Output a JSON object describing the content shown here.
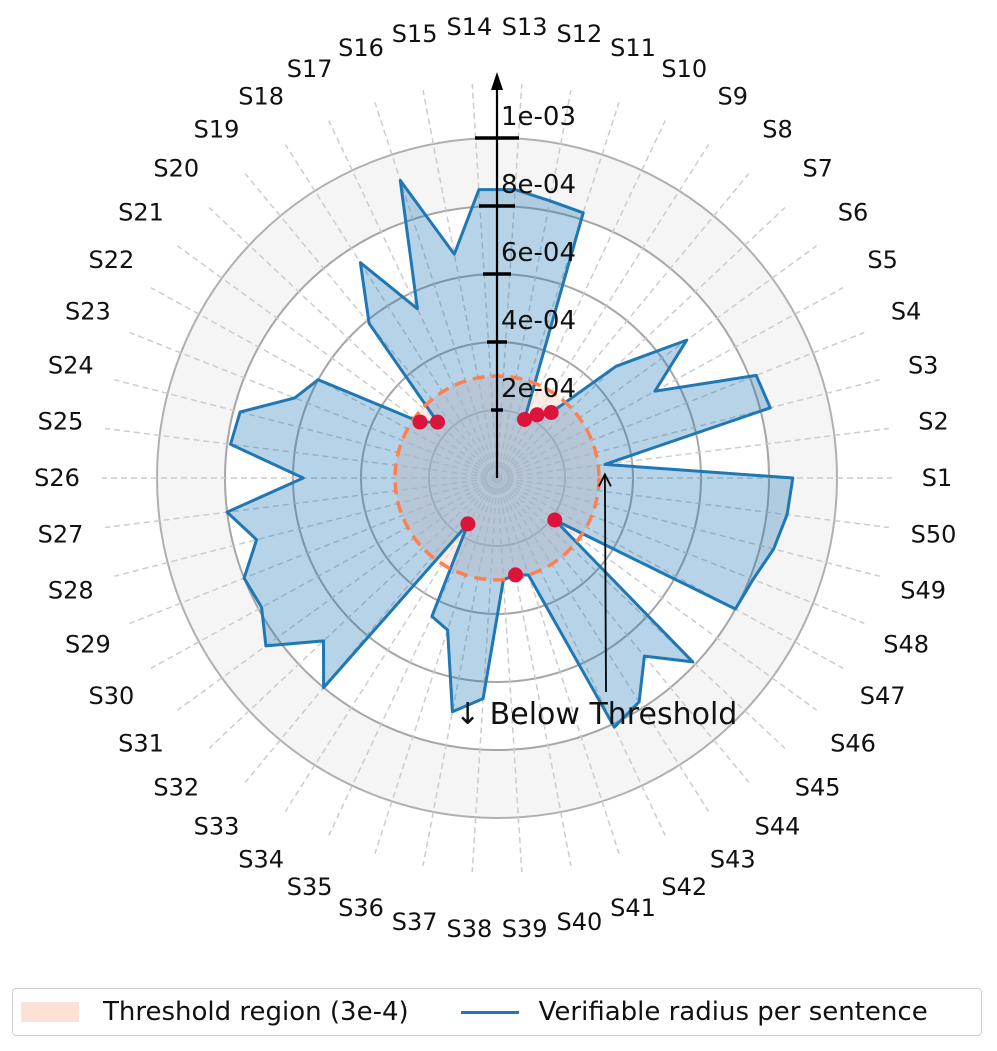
{
  "chart_data": {
    "type": "radar",
    "categories": [
      "S1",
      "S2",
      "S3",
      "S4",
      "S5",
      "S6",
      "S7",
      "S8",
      "S9",
      "S10",
      "S11",
      "S12",
      "S13",
      "S14",
      "S15",
      "S16",
      "S17",
      "S18",
      "S19",
      "S20",
      "S21",
      "S22",
      "S23",
      "S24",
      "S25",
      "S26",
      "S27",
      "S28",
      "S29",
      "S30",
      "S31",
      "S32",
      "S33",
      "S34",
      "S35",
      "S36",
      "S37",
      "S38",
      "S39",
      "S40",
      "S41",
      "S42",
      "S43",
      "S44",
      "S45",
      "S46",
      "S47",
      "S48",
      "S49",
      "S50"
    ],
    "series": [
      {
        "name": "Verifiable radius per sentence",
        "values": [
          0.00087,
          0.00032,
          0.00083,
          0.00082,
          0.00053,
          0.00069,
          0.00048,
          0.00025,
          0.00022,
          0.00019,
          0.00082,
          0.00083,
          0.00085,
          0.00085,
          0.00067,
          0.00092,
          0.00055,
          0.00075,
          0.00059,
          0.00024,
          0.00028,
          0.0006,
          0.00064,
          0.00078,
          0.00079,
          0.00057,
          0.0008,
          0.00073,
          0.0008,
          0.00079,
          0.00084,
          0.0007,
          0.0008,
          0.00016,
          0.00045,
          0.00047,
          0.0007,
          0.00065,
          0.0003,
          0.00029,
          0.0003,
          0.00081,
          0.00078,
          0.00068,
          0.00079,
          0.00021,
          0.0008,
          0.00081,
          0.00084,
          0.00086
        ],
        "color": "#1f77b4"
      }
    ],
    "threshold": {
      "label": "Threshold region (3e-4)",
      "value": 0.0003,
      "color": "#ff7f50",
      "fill": "#fde0d6"
    },
    "below_threshold_marker_color": "#dc143c",
    "radial_axis": {
      "tick_labels": [
        "2e-04",
        "4e-04",
        "6e-04",
        "8e-04",
        "1e-03"
      ],
      "tick_values": [
        0.0002,
        0.0004,
        0.0006,
        0.0008,
        0.001
      ],
      "rmax": 0.001,
      "band_color": "#f5f5f5"
    },
    "annotation": {
      "text": "↓ Below Threshold",
      "target_category": "S2"
    },
    "legend": {
      "placement": "bottom",
      "items": [
        "Threshold region (3e-4)",
        "Verifiable radius per sentence"
      ]
    },
    "grid": true
  }
}
